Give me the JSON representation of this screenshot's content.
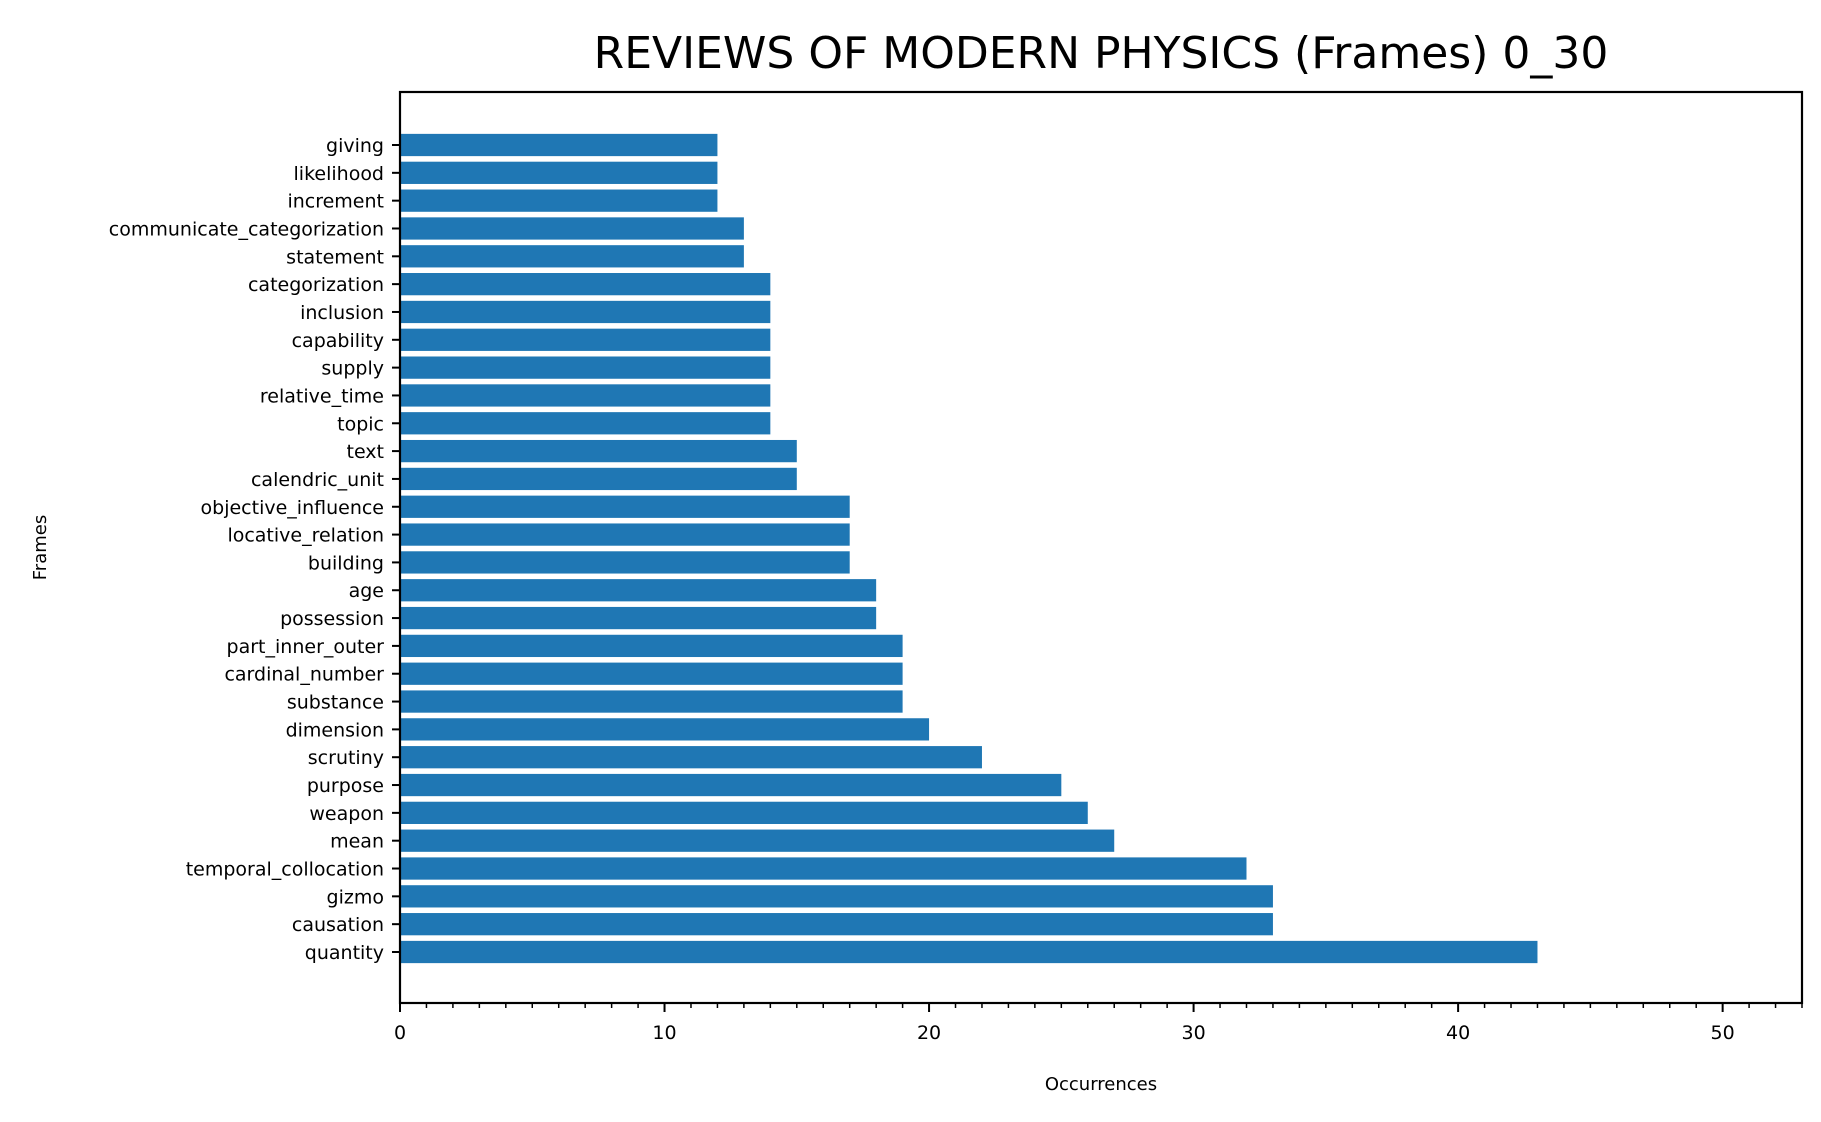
{
  "chart_data": {
    "type": "bar",
    "orientation": "horizontal",
    "title": "REVIEWS OF MODERN PHYSICS (Frames) 0_30",
    "xlabel": "Occurrences",
    "ylabel": "Frames",
    "xlim": [
      0,
      53
    ],
    "xticks": [
      0,
      10,
      20,
      30,
      40,
      50
    ],
    "minor_tick_step": 1,
    "grid": false,
    "legend": "none",
    "bar_color": "#1f77b4",
    "categories": [
      "quantity",
      "causation",
      "gizmo",
      "temporal_collocation",
      "mean",
      "weapon",
      "purpose",
      "scrutiny",
      "dimension",
      "substance",
      "cardinal_number",
      "part_inner_outer",
      "possession",
      "age",
      "building",
      "locative_relation",
      "objective_influence",
      "calendric_unit",
      "text",
      "topic",
      "relative_time",
      "supply",
      "capability",
      "inclusion",
      "categorization",
      "statement",
      "communicate_categorization",
      "increment",
      "likelihood",
      "giving"
    ],
    "values": [
      43,
      33,
      33,
      32,
      27,
      26,
      25,
      22,
      20,
      19,
      19,
      19,
      18,
      18,
      17,
      17,
      17,
      15,
      15,
      14,
      14,
      14,
      14,
      14,
      14,
      13,
      13,
      12,
      12,
      12
    ]
  }
}
